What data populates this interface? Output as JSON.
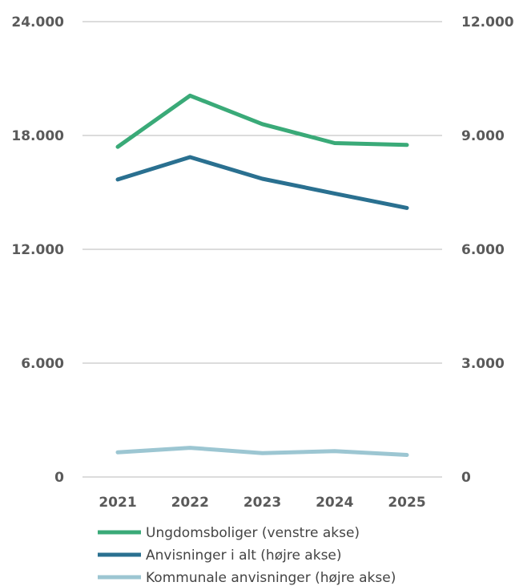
{
  "chart_data": {
    "type": "line",
    "categories": [
      "2021",
      "2022",
      "2023",
      "2024",
      "2025"
    ],
    "left_axis": {
      "ticks": [
        "0",
        "6.000",
        "12.000",
        "18.000",
        "24.000"
      ],
      "ylim": [
        0,
        24000
      ]
    },
    "right_axis": {
      "ticks": [
        "0",
        "3.000",
        "6.000",
        "9.000",
        "12.000"
      ],
      "ylim": [
        0,
        12000
      ]
    },
    "series": [
      {
        "name": "Ungdomsboliger (venstre akse)",
        "axis": "left",
        "color": "#3aaa78",
        "values": [
          17400,
          20100,
          18600,
          17600,
          17500
        ]
      },
      {
        "name": "Anvisninger i alt (højre akse)",
        "axis": "right",
        "color": "#2a7090",
        "values": [
          7840,
          8430,
          7860,
          7470,
          7090
        ]
      },
      {
        "name": "Kommunale anvisninger (højre akse)",
        "axis": "right",
        "color": "#9cc6d2",
        "values": [
          650,
          770,
          630,
          680,
          580
        ]
      }
    ],
    "grid": true,
    "legend_position": "bottom-center"
  }
}
